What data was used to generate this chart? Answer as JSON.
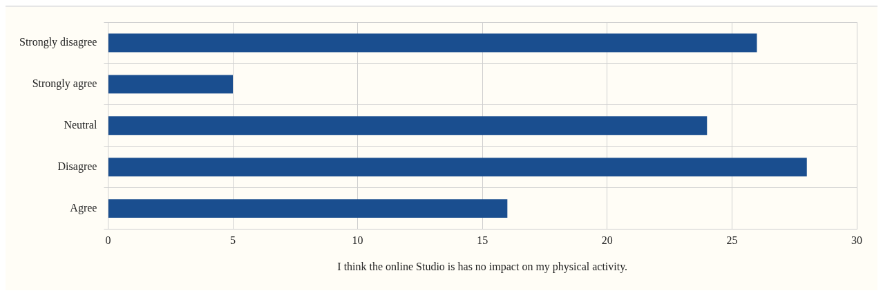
{
  "chart_data": {
    "type": "bar",
    "orientation": "horizontal",
    "xlabel": "I think the online Studio is has no impact on my physical activity.",
    "categories": [
      "Strongly disagree",
      "Strongly agree",
      "Neutral",
      "Disagree",
      "Agree"
    ],
    "values": [
      26,
      5,
      24,
      28,
      16
    ],
    "color": "#1a4e8f",
    "xlim": [
      0,
      30
    ],
    "xticks": [
      0,
      5,
      10,
      15,
      20,
      25,
      30
    ],
    "grid": true,
    "legend": false
  }
}
